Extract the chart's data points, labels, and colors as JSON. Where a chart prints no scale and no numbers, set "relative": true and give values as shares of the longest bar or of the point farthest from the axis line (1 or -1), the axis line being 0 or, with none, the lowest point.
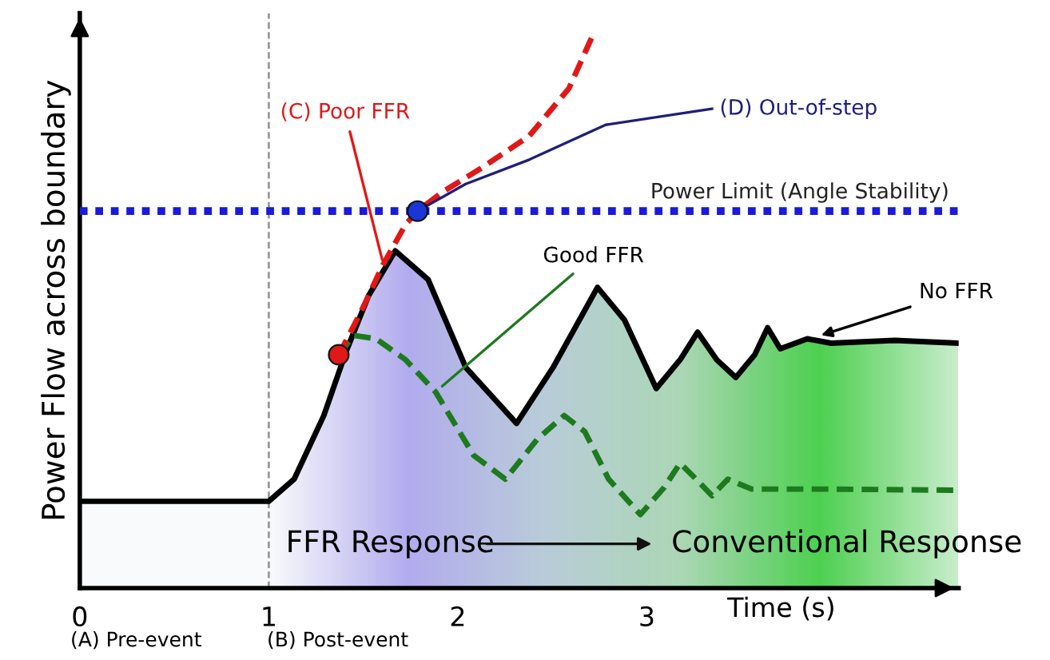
{
  "chart_data": {
    "type": "line",
    "relative": true,
    "xlabel": "Time (s)",
    "ylabel": "Power Flow across boundary",
    "xlim": [
      0,
      4.65
    ],
    "xticks": [
      0,
      1,
      2,
      3
    ],
    "grid": false,
    "tick_labels": "x",
    "series": [
      {
        "name": "No FFR",
        "type": "area",
        "color": "#000000",
        "line_style": "solid",
        "x": [
          0,
          1,
          1.134,
          1.291,
          1.409,
          1.528,
          1.669,
          1.843,
          2.042,
          2.311,
          2.504,
          2.739,
          2.882,
          3.05,
          3.176,
          3.269,
          3.37,
          3.471,
          3.571,
          3.639,
          3.706,
          3.849,
          3.975,
          4.311,
          4.647
        ],
        "values": [
          0.157,
          0.157,
          0.197,
          0.312,
          0.428,
          0.529,
          0.61,
          0.558,
          0.399,
          0.298,
          0.399,
          0.544,
          0.485,
          0.361,
          0.413,
          0.463,
          0.413,
          0.381,
          0.422,
          0.471,
          0.433,
          0.451,
          0.443,
          0.448,
          0.443
        ]
      },
      {
        "name": "Good FFR",
        "color": "#1e7a1e",
        "line_style": "dashed",
        "x": [
          1.37,
          1.449,
          1.567,
          1.724,
          1.882,
          2.084,
          2.252,
          2.42,
          2.563,
          2.672,
          2.798,
          2.966,
          3.092,
          3.176,
          3.261,
          3.345,
          3.429,
          3.555,
          3.975,
          4.647
        ],
        "values": [
          0.422,
          0.457,
          0.451,
          0.413,
          0.355,
          0.24,
          0.197,
          0.269,
          0.312,
          0.283,
          0.197,
          0.133,
          0.182,
          0.226,
          0.197,
          0.167,
          0.197,
          0.179,
          0.179,
          0.177
        ]
      },
      {
        "name": "(C) Poor FFR",
        "color": "#e01818",
        "line_style": "dashed",
        "x": [
          1.37,
          1.488,
          1.606,
          1.724,
          1.787,
          1.921,
          2.126,
          2.378,
          2.588,
          2.714
        ],
        "values": [
          0.422,
          0.5,
          0.586,
          0.658,
          0.682,
          0.717,
          0.76,
          0.818,
          0.904,
          1.0
        ]
      },
      {
        "name": "(D) Out-of-step",
        "color": "#1f1f7a",
        "line_style": "solid",
        "x": [
          1.787,
          2.042,
          2.378,
          2.782,
          3.345
        ],
        "values": [
          0.682,
          0.731,
          0.775,
          0.838,
          0.867
        ]
      },
      {
        "type": "scatter",
        "marker": "circle",
        "x": [
          1.37,
          1.787
        ],
        "values": [
          0.422,
          0.682
        ],
        "colors": [
          "#e01818",
          "#1a35d8"
        ]
      }
    ],
    "ref_lines": [
      {
        "axis": "y",
        "value": 0.682,
        "label": "Power Limit (Angle Stability)",
        "color": "#1a1ad8",
        "line_style": "dotted"
      },
      {
        "axis": "x",
        "value": 1,
        "color": "#999999",
        "line_style": "dashed"
      }
    ],
    "annotations": [
      "(A) Pre-event",
      "(B) Post-event",
      "FFR Response",
      "Conventional Response"
    ]
  }
}
